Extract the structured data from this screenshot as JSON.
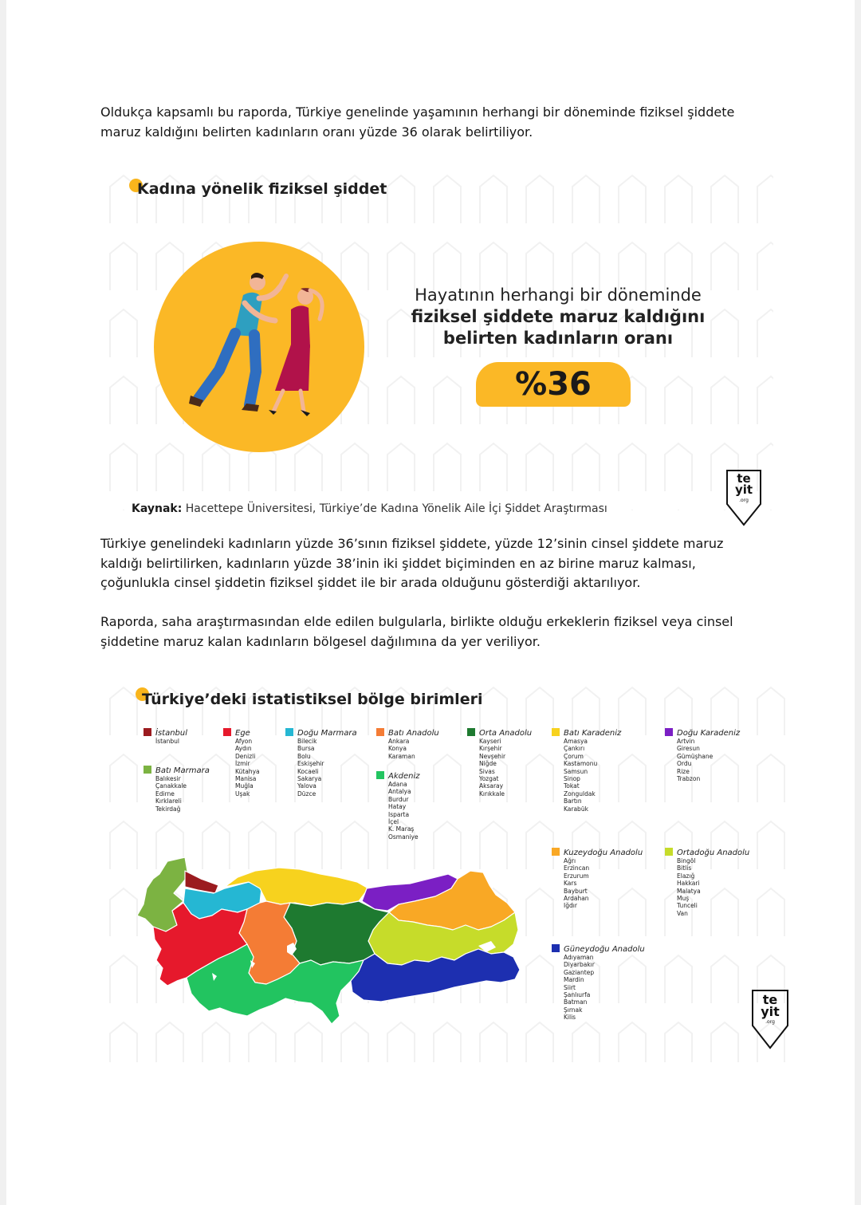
{
  "paragraphs": {
    "p1": "Oldukça kapsamlı bu raporda, Türkiye genelinde yaşamının herhangi bir döneminde fiziksel şiddete maruz kaldığını belirten kadınların oranı yüzde 36 olarak belirtiliyor.",
    "p2": "Türkiye genelindeki kadınların yüzde 36’sının fiziksel şiddete, yüzde 12’sinin cinsel şiddete maruz kaldığı belirtilirken, kadınların yüzde 38’inin iki şiddet biçiminden en az birine maruz kalması, çoğunlukla cinsel şiddetin fiziksel şiddet ile bir arada olduğunu gösterdiği aktarılıyor.",
    "p3": "Raporda, saha araştırmasından elde edilen bulgularla, birlikte olduğu erkeklerin fiziksel veya cinsel şiddetine maruz kalan kadınların bölgesel dağılımına da yer veriliyor."
  },
  "infographic1": {
    "title": "Kadına yönelik fiziksel şiddet",
    "quote_line1": "Hayatının herhangi bir döneminde",
    "quote_line2": "fiziksel şiddete maruz kaldığını",
    "quote_line3": "belirten kadınların oranı",
    "stat": "%36",
    "source_label": "Kaynak:",
    "source_text": "Hacettepe Üniversitesi, Türkiye’de Kadına Yönelik Aile İçi Şiddet Araştırması"
  },
  "logo": {
    "line1": "te",
    "line2": "yit",
    "line3": ".org"
  },
  "infographic2": {
    "title": "Türkiye’deki istatistiksel bölge birimleri",
    "regions": [
      {
        "name": "İstanbul",
        "color": "#9b1b1f",
        "cities": [
          "İstanbul"
        ]
      },
      {
        "name": "Batı Marmara",
        "color": "#7cb342",
        "cities": [
          "Balıkesir",
          "Çanakkale",
          "Edirne",
          "Kırklareli",
          "Tekirdağ"
        ]
      },
      {
        "name": "Ege",
        "color": "#e6192c",
        "cities": [
          "Afyon",
          "Aydın",
          "Denizli",
          "İzmir",
          "Kütahya",
          "Manisa",
          "Muğla",
          "Uşak"
        ]
      },
      {
        "name": "Doğu Marmara",
        "color": "#25b7d3",
        "cities": [
          "Bilecik",
          "Bursa",
          "Bolu",
          "Eskişehir",
          "Kocaeli",
          "Sakarya",
          "Yalova",
          "Düzce"
        ]
      },
      {
        "name": "Batı Anadolu",
        "color": "#f47c35",
        "cities": [
          "Ankara",
          "Konya",
          "Karaman"
        ]
      },
      {
        "name": "Akdeniz",
        "color": "#22c460",
        "cities": [
          "Adana",
          "Antalya",
          "Burdur",
          "Hatay",
          "Isparta",
          "İçel",
          "K. Maraş",
          "Osmaniye"
        ]
      },
      {
        "name": "Orta Anadolu",
        "color": "#1e7a30",
        "cities": [
          "Kayseri",
          "Kırşehir",
          "Nevşehir",
          "Niğde",
          "Sivas",
          "Yozgat",
          "Aksaray",
          "Kırıkkale"
        ]
      },
      {
        "name": "Batı Karadeniz",
        "color": "#f7d21e",
        "cities": [
          "Amasya",
          "Çankırı",
          "Çorum",
          "Kastamonu",
          "Samsun",
          "Sinop",
          "Tokat",
          "Zonguldak",
          "Bartın",
          "Karabük"
        ]
      },
      {
        "name": "Doğu Karadeniz",
        "color": "#7b1fc4",
        "cities": [
          "Artvin",
          "Giresun",
          "Gümüşhane",
          "Ordu",
          "Rize",
          "Trabzon"
        ]
      },
      {
        "name": "Kuzeydoğu Anadolu",
        "color": "#f9a825",
        "cities": [
          "Ağrı",
          "Erzincan",
          "Erzurum",
          "Kars",
          "Bayburt",
          "Ardahan",
          "Iğdır"
        ]
      },
      {
        "name": "Ortadoğu Anadolu",
        "color": "#c6dc2a",
        "cities": [
          "Bingöl",
          "Bitlis",
          "Elazığ",
          "Hakkari",
          "Malatya",
          "Muş",
          "Tunceli",
          "Van"
        ]
      },
      {
        "name": "Güneydoğu Anadolu",
        "color": "#1d2fb0",
        "cities": [
          "Adıyaman",
          "Diyarbakır",
          "Gaziantep",
          "Mardin",
          "Siirt",
          "Şanlıurfa",
          "Batman",
          "Şırnak",
          "Kilis"
        ]
      }
    ]
  }
}
